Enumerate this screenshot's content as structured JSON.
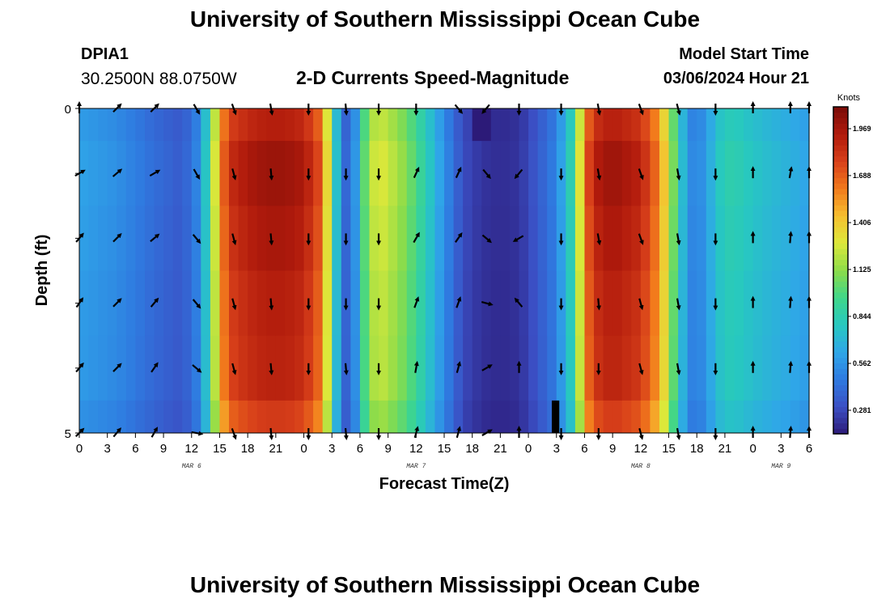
{
  "header": {
    "title": "University of Southern Mississippi Ocean Cube",
    "station_id": "DPIA1",
    "coords": "30.2500N  88.0750W",
    "chart_title": "2-D Currents Speed-Magnitude",
    "model_label": "Model Start Time",
    "model_time": "03/06/2024 Hour 21"
  },
  "footer": {
    "title": "University of Southern Mississippi Ocean Cube"
  },
  "chart_data": {
    "type": "heatmap",
    "title": "2-D Currents Speed-Magnitude",
    "xlabel": "Forecast Time(Z)",
    "ylabel": "Depth (ft)",
    "xlim": [
      0,
      78
    ],
    "ylim": [
      0,
      5
    ],
    "y_inverted": true,
    "x_tick_values": [
      0,
      3,
      6,
      9,
      12,
      15,
      18,
      21,
      24,
      27,
      30,
      33,
      36,
      39,
      42,
      45,
      48,
      51,
      54,
      57,
      60,
      63,
      66,
      69,
      72,
      75,
      78
    ],
    "x_tick_labels": [
      "0",
      "3",
      "6",
      "9",
      "12",
      "15",
      "18",
      "21",
      "0",
      "3",
      "6",
      "9",
      "12",
      "15",
      "18",
      "21",
      "0",
      "3",
      "6",
      "9",
      "12",
      "15",
      "18",
      "21",
      "0",
      "3",
      "6"
    ],
    "y_tick_values": [
      0,
      5
    ],
    "y_tick_labels": [
      "0",
      "5"
    ],
    "date_labels": [
      {
        "label": "MAR 6",
        "x": 12
      },
      {
        "label": "MAR 7",
        "x": 36
      },
      {
        "label": "MAR 8",
        "x": 60
      },
      {
        "label": "MAR 9",
        "x": 75
      }
    ],
    "colorbar": {
      "unit": "Knots",
      "min": 0.14,
      "max": 2.1,
      "tick_values": [
        0.281,
        0.562,
        0.844,
        1.125,
        1.406,
        1.688,
        1.969
      ],
      "tick_labels": [
        "0.281",
        "0.562",
        "0.844",
        "1.125",
        "1.406",
        "1.688",
        "1.969"
      ],
      "colors": [
        "#2c1a78",
        "#3b4fc4",
        "#2f7ae0",
        "#2fa6e8",
        "#27c8c0",
        "#3fd68a",
        "#8cdc4a",
        "#dce83a",
        "#f6c030",
        "#f27a1c",
        "#d8401a",
        "#b01a0c",
        "#7a0c08"
      ]
    },
    "depths": [
      0,
      1,
      2,
      3,
      4,
      5
    ],
    "speed_profile": {
      "hours": [
        0,
        4,
        8,
        11,
        13,
        14,
        15,
        16,
        18,
        20,
        22,
        24,
        26,
        27,
        28,
        29,
        30,
        31,
        32,
        33,
        35,
        37,
        39,
        41,
        43,
        45,
        47,
        49,
        51,
        53,
        54,
        55,
        56,
        57,
        58,
        60,
        62,
        64,
        65,
        66,
        67,
        68,
        69,
        70,
        72,
        74,
        76,
        78
      ],
      "knots": [
        0.62,
        0.55,
        0.42,
        0.35,
        0.55,
        1.0,
        1.55,
        1.85,
        1.95,
        2.0,
        2.0,
        1.95,
        1.7,
        1.0,
        0.5,
        0.3,
        0.85,
        1.2,
        1.3,
        1.25,
        1.1,
        0.85,
        0.55,
        0.3,
        0.22,
        0.2,
        0.22,
        0.35,
        0.5,
        0.95,
        1.65,
        1.9,
        1.97,
        2.0,
        1.97,
        1.9,
        1.6,
        0.9,
        0.55,
        0.5,
        0.6,
        0.75,
        0.85,
        0.85,
        0.78,
        0.72,
        0.68,
        0.62
      ]
    },
    "anomalies": [
      {
        "hour_start": 42,
        "hour_end": 44,
        "depth_start": 0,
        "depth_end": 0.5,
        "knots": 0.12
      },
      {
        "hour_start": 50.5,
        "hour_end": 51.3,
        "depth_start": 4.5,
        "depth_end": 5,
        "knots": 0.0
      }
    ],
    "vectors": {
      "depths": [
        0,
        1,
        2,
        3,
        4,
        5
      ],
      "hours": [
        0,
        4,
        8,
        12.5,
        16.5,
        20.5,
        24.5,
        28.5,
        32,
        36,
        40.5,
        43.5,
        47,
        51.5,
        55.5,
        60,
        64,
        68,
        72,
        76,
        78
      ],
      "direction_deg_by_depth": [
        [
          0,
          45,
          45,
          150,
          160,
          170,
          180,
          175,
          180,
          180,
          140,
          220,
          180,
          180,
          170,
          160,
          165,
          180,
          0,
          0,
          0
        ],
        [
          60,
          50,
          60,
          150,
          165,
          175,
          180,
          180,
          180,
          25,
          25,
          140,
          220,
          180,
          170,
          160,
          170,
          180,
          0,
          10,
          0
        ],
        [
          40,
          45,
          50,
          140,
          165,
          175,
          180,
          180,
          180,
          30,
          35,
          130,
          240,
          180,
          170,
          160,
          170,
          180,
          0,
          5,
          0
        ],
        [
          35,
          45,
          40,
          140,
          165,
          175,
          180,
          180,
          180,
          20,
          20,
          105,
          320,
          180,
          175,
          165,
          170,
          180,
          0,
          5,
          0
        ],
        [
          40,
          45,
          35,
          130,
          165,
          175,
          180,
          175,
          180,
          10,
          15,
          60,
          0,
          180,
          180,
          165,
          170,
          180,
          0,
          5,
          0
        ],
        [
          45,
          40,
          30,
          100,
          160,
          175,
          180,
          175,
          180,
          15,
          15,
          60,
          0,
          180,
          180,
          165,
          170,
          180,
          0,
          5,
          0
        ]
      ]
    }
  }
}
